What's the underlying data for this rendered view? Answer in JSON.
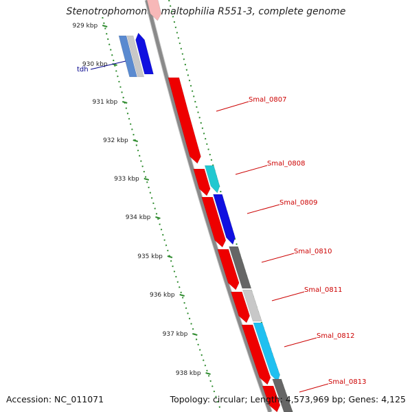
{
  "title": "Stenotrophomonas maltophilia R551-3, complete genome",
  "accession": {
    "label": "Accession:",
    "value": "NC_011071"
  },
  "genome_stats": {
    "topology_label": "Topology:",
    "topology": "circular;",
    "length_label": "Length:",
    "length": "4,573,969 bp;",
    "genes_label": "Genes:",
    "genes": "4,125"
  },
  "ticks": [
    {
      "label": "929 kbp"
    },
    {
      "label": "930 kbp"
    },
    {
      "label": "931 kbp"
    },
    {
      "label": "932 kbp"
    },
    {
      "label": "933 kbp"
    },
    {
      "label": "934 kbp"
    },
    {
      "label": "935 kbp"
    },
    {
      "label": "936 kbp"
    },
    {
      "label": "937 kbp"
    },
    {
      "label": "938 kbp"
    }
  ],
  "gene_labels": [
    {
      "label": "tdh",
      "color": "#00008b"
    },
    {
      "label": "Smal_0807",
      "color": "#cc0000"
    },
    {
      "label": "Smal_0808",
      "color": "#cc0000"
    },
    {
      "label": "Smal_0809",
      "color": "#cc0000"
    },
    {
      "label": "Smal_0810",
      "color": "#cc0000"
    },
    {
      "label": "Smal_0811",
      "color": "#cc0000"
    },
    {
      "label": "Smal_0812",
      "color": "#cc0000"
    },
    {
      "label": "Smal_0813",
      "color": "#cc0000"
    }
  ],
  "colors": {
    "backbone": "#8a8a8a",
    "tick": "#2e8b2e",
    "forward_gene": "#ee0000",
    "cyan": "#22c8d0",
    "blue": "#1010e0",
    "dark_gray": "#666666",
    "light_gray": "#c8c8c8",
    "sky_blue": "#20c0f0",
    "steel_blue": "#5a8ad0"
  }
}
